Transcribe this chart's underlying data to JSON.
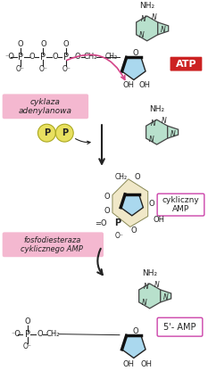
{
  "bg_color": "#ffffff",
  "atp_label": "ATP",
  "atp_label_color": "#ffffff",
  "atp_box_color": "#cc2222",
  "enzyme1_label": "cyklaza\nadenylanowa",
  "enzyme1_box_color": "#f4b8d0",
  "enzyme2_label": "fosfodiesteraza\ncyklicznego AMP",
  "enzyme2_box_color": "#f4b8d0",
  "camp_label": "cykliczny\nAMP",
  "camp_box_color": "#ffffff",
  "camp_border_color": "#cc44aa",
  "amp5_label": "5'- AMP",
  "amp5_box_color": "#ffffff",
  "amp5_border_color": "#cc44aa",
  "pp_color": "#e8e060",
  "pp_border": "#aaa820",
  "adenine_hex_color": "#b8e0cc",
  "adenine_pent_color": "#b8e0cc",
  "ribose_color": "#aad8ee",
  "ribose_dark": "#222222",
  "arrow_color": "#222222",
  "curved_arrow_color": "#d44488",
  "text_color": "#222222",
  "bond_color": "#444444"
}
